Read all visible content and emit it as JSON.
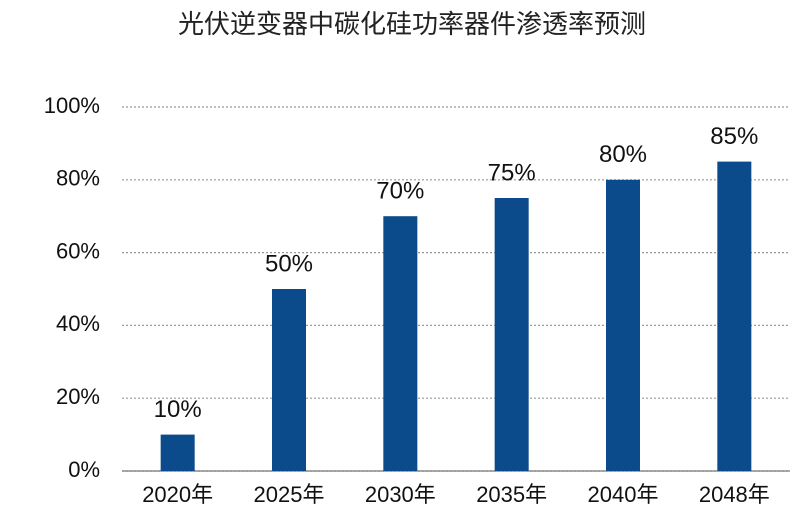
{
  "chart_data": {
    "type": "bar",
    "title": "光伏逆变器中碳化硅功率器件渗透率预测",
    "categories": [
      "2020年",
      "2025年",
      "2030年",
      "2035年",
      "2040年",
      "2048年"
    ],
    "values": [
      10,
      50,
      70,
      75,
      80,
      85
    ],
    "value_labels": [
      "10%",
      "50%",
      "70%",
      "75%",
      "80%",
      "85%"
    ],
    "color": "#0b4a8b",
    "ylim": [
      0,
      100
    ],
    "yticks": [
      {
        "value": 0,
        "label": "0%"
      },
      {
        "value": 20,
        "label": "20%"
      },
      {
        "value": 40,
        "label": "40%"
      },
      {
        "value": 60,
        "label": "60%"
      },
      {
        "value": 80,
        "label": "80%"
      },
      {
        "value": 100,
        "label": "100%"
      }
    ],
    "grid": true
  }
}
